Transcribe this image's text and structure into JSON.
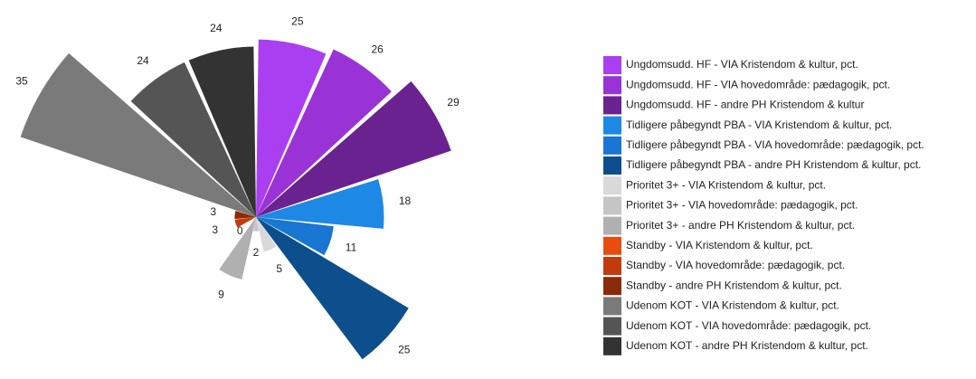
{
  "chart_data": {
    "type": "polar",
    "categories": [
      "Ungdomsudd. HF - VIA Kristendom & kultur, pct.",
      "Ungdomsudd. HF - VIA hovedområde: pædagogik, pct.",
      "Ungdomsudd. HF - andre PH Kristendom & kultur",
      "Tidligere påbegyndt PBA - VIA Kristendom & kultur, pct.",
      "Tidligere påbegyndt PBA - VIA hovedområde: pædagogik, pct.",
      "Tidligere påbegyndt PBA - andre PH Kristendom & kultur, pct.",
      "Prioritet 3+ - VIA Kristendom & kultur, pct.",
      "Prioritet 3+ - VIA hovedområde: pædagogik, pct.",
      "Prioritet 3+ - andre PH Kristendom & kultur, pct.",
      "Standby - VIA Kristendom & kultur, pct.",
      "Standby - VIA hovedområde: pædagogik, pct.",
      "Standby - andre PH Kristendom & kultur, pct.",
      "Udenom KOT - VIA Kristendom & kultur, pct.",
      "Udenom KOT - VIA hovedområde: pædagogik, pct.",
      "Udenom KOT - andre PH Kristendom & kultur, pct."
    ],
    "values": [
      25,
      26,
      29,
      18,
      11,
      25,
      5,
      2,
      9,
      0,
      3,
      3,
      35,
      24,
      24
    ],
    "colors": [
      "#a93ff0",
      "#9a33d6",
      "#6a2290",
      "#1e88e5",
      "#1976d2",
      "#0d4f8c",
      "#d9d9d9",
      "#c5c5c5",
      "#b0b0b0",
      "#e84d0e",
      "#c23b0c",
      "#8b2a06",
      "#7a7a7a",
      "#555555",
      "#333333"
    ]
  }
}
